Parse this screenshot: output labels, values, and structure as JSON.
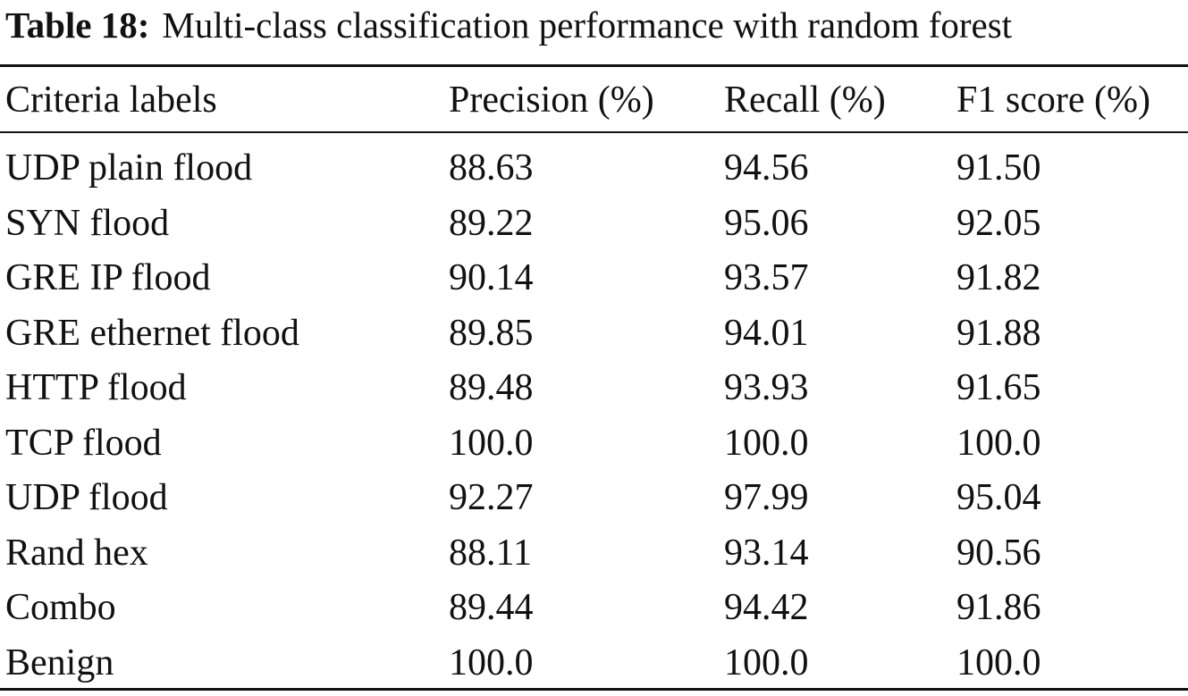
{
  "caption": {
    "label": "Table 18:",
    "title": "Multi-class classification performance with random forest"
  },
  "table": {
    "headers": [
      "Criteria labels",
      "Precision (%)",
      "Recall (%)",
      "F1 score (%)"
    ],
    "rows": [
      [
        "UDP plain flood",
        "88.63",
        "94.56",
        "91.50"
      ],
      [
        "SYN flood",
        "89.22",
        "95.06",
        "92.05"
      ],
      [
        "GRE IP flood",
        "90.14",
        "93.57",
        "91.82"
      ],
      [
        "GRE ethernet flood",
        "89.85",
        "94.01",
        "91.88"
      ],
      [
        "HTTP flood",
        "89.48",
        "93.93",
        "91.65"
      ],
      [
        "TCP flood",
        "100.0",
        "100.0",
        "100.0"
      ],
      [
        "UDP flood",
        "92.27",
        "97.99",
        "95.04"
      ],
      [
        "Rand hex",
        "88.11",
        "93.14",
        "90.56"
      ],
      [
        "Combo",
        "89.44",
        "94.42",
        "91.86"
      ],
      [
        "Benign",
        "100.0",
        "100.0",
        "100.0"
      ]
    ]
  }
}
